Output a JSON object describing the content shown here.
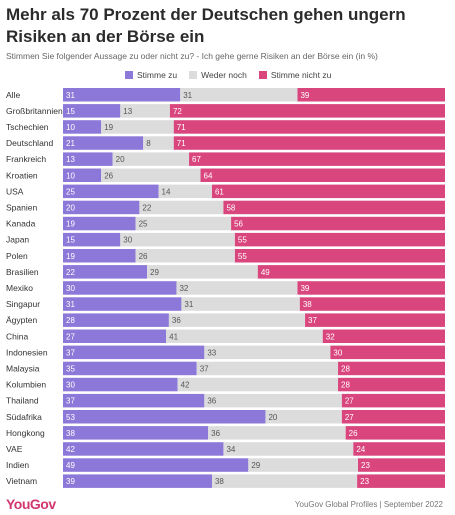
{
  "header": {
    "title": "Mehr als 70 Prozent der Deutschen gehen ungern Risiken an der Börse ein",
    "subtitle": "Stimmen Sie folgender Aussage zu oder nicht zu? - Ich gehe gerne Risiken an der Börse ein (in %)"
  },
  "footer": {
    "logo": "YouGov",
    "source": "YouGov Global Profiles | September 2022"
  },
  "colors": {
    "agree": "#8b78d8",
    "neutral": "#dcdcdc",
    "disagree": "#d9467e"
  },
  "chart_data": {
    "type": "bar",
    "orientation": "horizontal",
    "stacked": true,
    "title": "Mehr als 70 Prozent der Deutschen gehen ungern Risiken an der Börse ein",
    "legend_position": "top",
    "categories": [
      "Alle",
      "Großbritannien",
      "Tschechien",
      "Deutschland",
      "Frankreich",
      "Kroatien",
      "USA",
      "Spanien",
      "Kanada",
      "Japan",
      "Polen",
      "Brasilien",
      "Mexiko",
      "Singapur",
      "Ägypten",
      "China",
      "Indonesien",
      "Malaysia",
      "Kolumbien",
      "Thailand",
      "Südafrika",
      "Hongkong",
      "VAE",
      "Indien",
      "Vietnam"
    ],
    "series": [
      {
        "name": "Stimme zu",
        "values": [
          31,
          15,
          10,
          21,
          13,
          10,
          25,
          20,
          19,
          15,
          19,
          22,
          30,
          31,
          28,
          27,
          37,
          35,
          30,
          37,
          53,
          38,
          42,
          49,
          39
        ]
      },
      {
        "name": "Weder noch",
        "values": [
          31,
          13,
          19,
          8,
          20,
          26,
          14,
          22,
          25,
          30,
          26,
          29,
          32,
          31,
          36,
          41,
          33,
          37,
          42,
          36,
          20,
          36,
          34,
          29,
          38
        ]
      },
      {
        "name": "Stimme nicht zu",
        "values": [
          39,
          72,
          71,
          71,
          67,
          64,
          61,
          58,
          56,
          55,
          55,
          49,
          39,
          38,
          37,
          32,
          30,
          28,
          28,
          27,
          27,
          26,
          24,
          23,
          23
        ]
      }
    ]
  }
}
